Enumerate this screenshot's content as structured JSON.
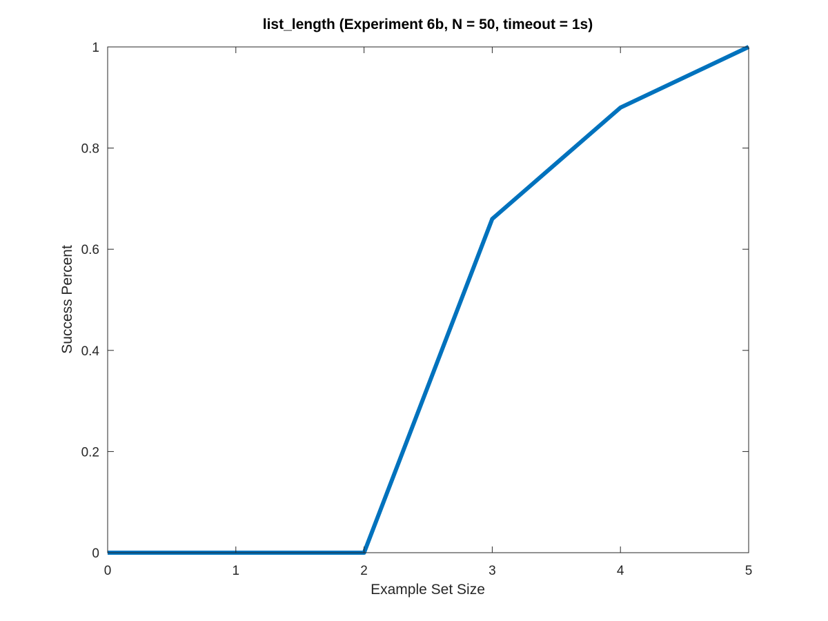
{
  "chart_data": {
    "type": "line",
    "title": "list_length (Experiment 6b, N = 50, timeout = 1s)",
    "xlabel": "Example Set Size",
    "ylabel": "Success Percent",
    "xlim": [
      0,
      5
    ],
    "ylim": [
      0,
      1
    ],
    "grid": false,
    "box": true,
    "x_ticks": [
      0,
      1,
      2,
      3,
      4,
      5
    ],
    "x_tick_labels": [
      "0",
      "1",
      "2",
      "3",
      "4",
      "5"
    ],
    "y_ticks": [
      0,
      0.2,
      0.4,
      0.6,
      0.8,
      1
    ],
    "y_tick_labels": [
      "0",
      "0.2",
      "0.4",
      "0.6",
      "0.8",
      "1"
    ],
    "series": [
      {
        "color": "#0072BD",
        "x": [
          0,
          1,
          2,
          3,
          4,
          5
        ],
        "y": [
          0,
          0,
          0,
          0.66,
          0.88,
          1
        ]
      }
    ]
  }
}
